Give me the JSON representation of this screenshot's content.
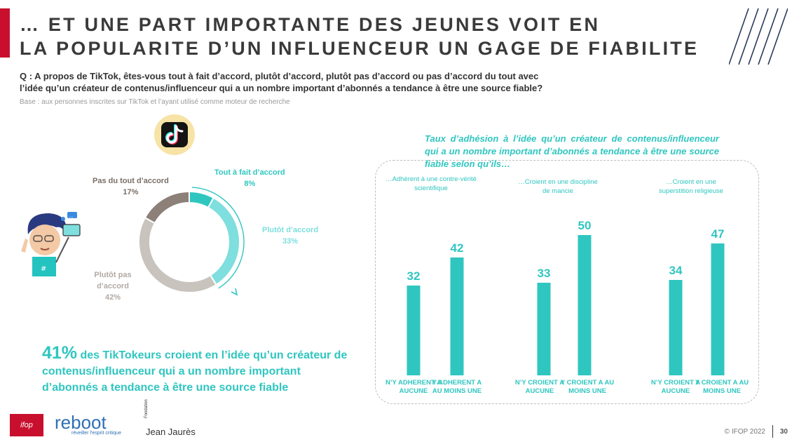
{
  "header": {
    "title_line1": "… ET UNE PART IMPORTANTE DES JEUNES VOIT EN",
    "title_line2": "LA POPULARITE D’UN INFLUENCEUR UN GAGE DE FIABILITE",
    "question_line1": "Q : A propos de TikTok, êtes-vous tout à fait d’accord, plutôt d’accord, plutôt pas d’accord ou pas d’accord du tout avec",
    "question_line2": "l’idée qu’un créateur de contenus/influenceur qui a un nombre important d’abonnés a tendance à être une source fiable?",
    "base": "Base : aux personnes inscrites sur TikTok et l’ayant utilisé comme moteur de recherche"
  },
  "headline": {
    "big": "41%",
    "text": " des TikTokeurs croient en l’idée qu’un créateur de contenus/influenceur qui a un nombre important d’abonnés a tendance à être une source fiable"
  },
  "chart_data": [
    {
      "type": "pie",
      "donut": true,
      "slices": [
        {
          "label": "Tout à fait d’accord",
          "value": 8,
          "value_label": "8%",
          "color": "#2fc6c0"
        },
        {
          "label": "Plutôt d’accord",
          "value": 33,
          "value_label": "33%",
          "color": "#7fdede"
        },
        {
          "label": "Plutôt pas d’accord",
          "value": 42,
          "value_label": "42%",
          "color": "#c9c3be"
        },
        {
          "label": "Pas du tout d’accord",
          "value": 17,
          "value_label": "17%",
          "color": "#8c8079"
        }
      ]
    },
    {
      "type": "bar",
      "title": "Taux d’adhésion à l’idée qu’un créateur de contenus/influenceur qui a un nombre important d’abonnés a tendance à être une source fiable selon qu’ils…",
      "ylim": [
        0,
        60
      ],
      "color": "#2fc6c0",
      "groups": [
        {
          "title": "…Adhèrent à une contre-vérité scientifique",
          "categories": [
            "N’Y ADHERENT A AUCUNE",
            "Y ADHERENT A AU MOINS UNE"
          ],
          "values": [
            32,
            42
          ]
        },
        {
          "title": "…Croient en une discipline de mancie",
          "categories": [
            "N’Y CROIENT A AUCUNE",
            "Y CROIENT A AU MOINS UNE"
          ],
          "values": [
            33,
            50
          ]
        },
        {
          "title": "…Croient en une superstition religieuse",
          "categories": [
            "N’Y CROIENT A AUCUNE",
            "Y CROIENT A AU MOINS UNE"
          ],
          "values": [
            34,
            47
          ]
        }
      ]
    }
  ],
  "footer": {
    "copyright": "© IFOP 2022",
    "page": "30",
    "logo_ifop": "ifop",
    "logo_reboot": "reboot",
    "logo_reboot_sub": "réveiller l'esprit critique",
    "logo_jaures_pre": "Fondation",
    "logo_jaures": "Jean Jaurès"
  },
  "icons": [
    "tiktok-logo-icon",
    "selfie-illustration-icon"
  ]
}
